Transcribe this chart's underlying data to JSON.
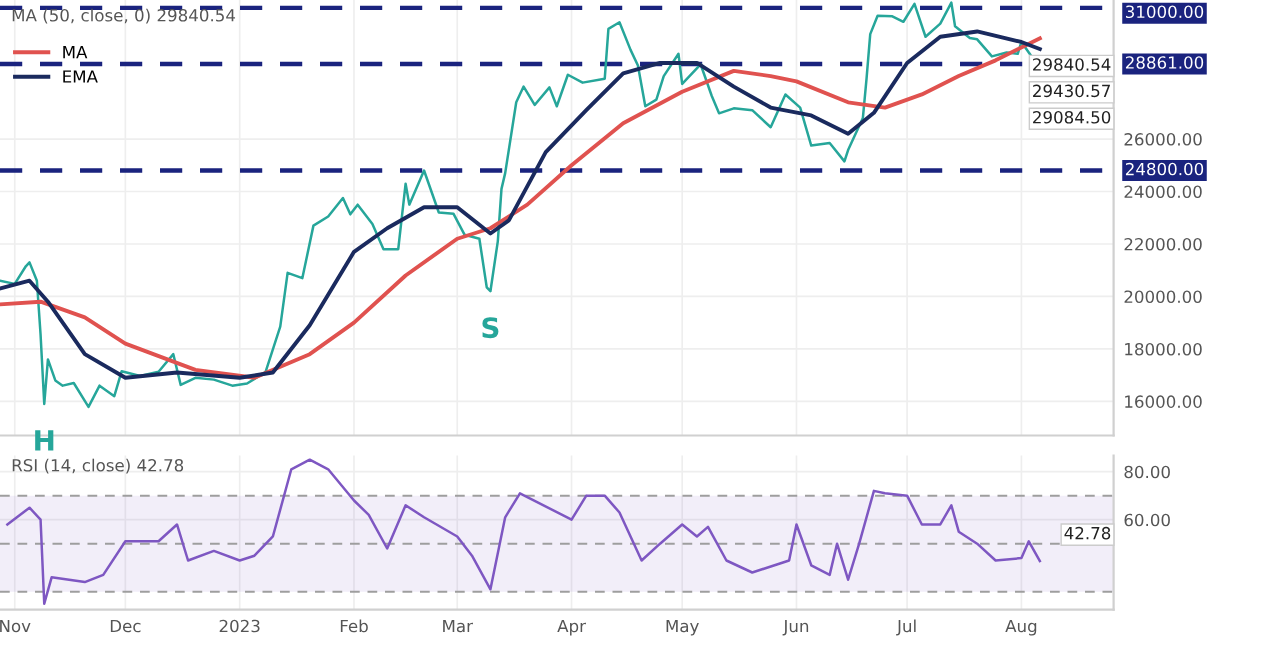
{
  "chart_data": [
    {
      "type": "line",
      "title": "MA (50, close, 0) 29840.54",
      "tick_labels": "y",
      "grid": true,
      "legend": "top left",
      "line_style": "solid",
      "marker": "none",
      "xlim": [
        "2022-10-28",
        "2023-08-26"
      ],
      "ylim": [
        14700,
        31300
      ],
      "yticks": [
        {
          "value": 16000,
          "label": "16000.00"
        },
        {
          "value": 18000,
          "label": "18000.00"
        },
        {
          "value": 20000,
          "label": "20000.00"
        },
        {
          "value": 22000,
          "label": "22000.00"
        },
        {
          "value": 24000,
          "label": "24000.00"
        },
        {
          "value": 26000,
          "label": "26000.00"
        }
      ],
      "series": [
        {
          "color": "#26a69a",
          "x": [
            "2022-10-28",
            "2022-11-01",
            "2022-11-04",
            "2022-11-05",
            "2022-11-07",
            "2022-11-08",
            "2022-11-09",
            "2022-11-10",
            "2022-11-12",
            "2022-11-14",
            "2022-11-17",
            "2022-11-21",
            "2022-11-24",
            "2022-11-28",
            "2022-11-30",
            "2022-12-05",
            "2022-12-10",
            "2022-12-14",
            "2022-12-16",
            "2022-12-20",
            "2022-12-25",
            "2022-12-30",
            "2023-01-03",
            "2023-01-08",
            "2023-01-12",
            "2023-01-14",
            "2023-01-18",
            "2023-01-21",
            "2023-01-25",
            "2023-01-29",
            "2023-01-31",
            "2023-02-02",
            "2023-02-06",
            "2023-02-09",
            "2023-02-13",
            "2023-02-15",
            "2023-02-16",
            "2023-02-20",
            "2023-02-24",
            "2023-02-28",
            "2023-03-03",
            "2023-03-07",
            "2023-03-09",
            "2023-03-10",
            "2023-03-12",
            "2023-03-13",
            "2023-03-14",
            "2023-03-17",
            "2023-03-19",
            "2023-03-22",
            "2023-03-26",
            "2023-03-28",
            "2023-03-31",
            "2023-04-04",
            "2023-04-10",
            "2023-04-11",
            "2023-04-14",
            "2023-04-17",
            "2023-04-19",
            "2023-04-21",
            "2023-04-24",
            "2023-04-26",
            "2023-04-30",
            "2023-05-01",
            "2023-05-06",
            "2023-05-09",
            "2023-05-11",
            "2023-05-15",
            "2023-05-20",
            "2023-05-25",
            "2023-05-29",
            "2023-06-02",
            "2023-06-05",
            "2023-06-10",
            "2023-06-14",
            "2023-06-15",
            "2023-06-19",
            "2023-06-20",
            "2023-06-21",
            "2023-06-23",
            "2023-06-27",
            "2023-06-30",
            "2023-07-03",
            "2023-07-06",
            "2023-07-10",
            "2023-07-13",
            "2023-07-14",
            "2023-07-18",
            "2023-07-20",
            "2023-07-24",
            "2023-07-28",
            "2023-07-31",
            "2023-08-01",
            "2023-08-04",
            "2023-08-06"
          ],
          "values": [
            20600,
            20480,
            21150,
            21300,
            20600,
            18550,
            15900,
            17600,
            16800,
            16600,
            16700,
            15790,
            16600,
            16200,
            17150,
            16970,
            17130,
            17800,
            16630,
            16900,
            16830,
            16600,
            16680,
            17120,
            18850,
            20900,
            20700,
            22700,
            23050,
            23750,
            23130,
            23500,
            22760,
            21800,
            21800,
            24300,
            23500,
            24800,
            23200,
            23150,
            22350,
            22200,
            20350,
            20200,
            22100,
            24100,
            24700,
            27400,
            28000,
            27300,
            27970,
            27250,
            28450,
            28150,
            28300,
            30200,
            30450,
            29400,
            28800,
            27250,
            27500,
            28400,
            29250,
            28100,
            28850,
            27650,
            26980,
            27170,
            27100,
            26450,
            27700,
            27200,
            25750,
            25850,
            25150,
            25580,
            26800,
            28300,
            30000,
            30700,
            30680,
            30470,
            31150,
            29900,
            30400,
            31200,
            30300,
            29850,
            29800,
            29150,
            29300,
            29250,
            29700,
            29100,
            29084.5
          ]
        },
        {
          "name": "MA",
          "color": "#e0524f",
          "x": [
            "2022-10-28",
            "2022-11-08",
            "2022-11-20",
            "2022-12-01",
            "2022-12-20",
            "2023-01-05",
            "2023-01-20",
            "2023-02-01",
            "2023-02-15",
            "2023-03-01",
            "2023-03-10",
            "2023-03-20",
            "2023-04-01",
            "2023-04-15",
            "2023-05-01",
            "2023-05-15",
            "2023-05-25",
            "2023-06-01",
            "2023-06-15",
            "2023-06-25",
            "2023-07-05",
            "2023-07-15",
            "2023-07-25",
            "2023-08-06"
          ],
          "values": [
            19700,
            19800,
            19200,
            18200,
            17200,
            16900,
            17800,
            19000,
            20800,
            22200,
            22600,
            23500,
            25000,
            26600,
            27800,
            28600,
            28400,
            28200,
            27400,
            27200,
            27700,
            28400,
            29000,
            29840.54
          ]
        },
        {
          "name": "EMA",
          "color": "#1a2a5e",
          "x": [
            "2022-10-28",
            "2022-11-05",
            "2022-11-10",
            "2022-11-20",
            "2022-12-01",
            "2022-12-15",
            "2023-01-01",
            "2023-01-10",
            "2023-01-20",
            "2023-02-01",
            "2023-02-10",
            "2023-02-20",
            "2023-03-01",
            "2023-03-10",
            "2023-03-15",
            "2023-03-25",
            "2023-04-05",
            "2023-04-15",
            "2023-04-25",
            "2023-05-05",
            "2023-05-15",
            "2023-05-25",
            "2023-06-05",
            "2023-06-15",
            "2023-06-22",
            "2023-07-01",
            "2023-07-10",
            "2023-07-20",
            "2023-08-01",
            "2023-08-06"
          ],
          "values": [
            20300,
            20600,
            19800,
            17800,
            16900,
            17100,
            16900,
            17100,
            18900,
            21700,
            22600,
            23400,
            23400,
            22400,
            22900,
            25500,
            27100,
            28500,
            28900,
            28900,
            28000,
            27200,
            26900,
            26200,
            27000,
            28900,
            29900,
            30100,
            29700,
            29430.57
          ]
        }
      ],
      "ref_lines": [
        {
          "axis": "y",
          "value": 31000,
          "label": "31000.00",
          "color": "#1a237e",
          "line_style": "dashed"
        },
        {
          "axis": "y",
          "value": 24800,
          "label": "24800.00",
          "color": "#1a237e",
          "line_style": "dashed"
        },
        {
          "axis": "y",
          "value": 28861,
          "label": "28861.00",
          "color": "#1a237e",
          "line_style": "dashed"
        }
      ],
      "annotations": [
        "29840.54",
        "29430.57",
        "29084.50",
        {
          "text": "H",
          "x": "2022-11-09",
          "y": 15900
        },
        {
          "text": "S",
          "x": "2023-03-10",
          "y": 20200
        }
      ]
    },
    {
      "type": "line",
      "title": "RSI (14, close) 42.78",
      "grid": true,
      "line_style": "solid",
      "marker": "none",
      "xlim": [
        "2022-10-28",
        "2023-08-26"
      ],
      "ylim": [
        22.5,
        86.7
      ],
      "xticks": [
        {
          "value": "2022-11-01",
          "label": "Nov"
        },
        {
          "value": "2022-12-01",
          "label": "Dec"
        },
        {
          "value": "2023-01-01",
          "label": "2023"
        },
        {
          "value": "2023-02-01",
          "label": "Feb"
        },
        {
          "value": "2023-03-01",
          "label": "Mar"
        },
        {
          "value": "2023-04-01",
          "label": "Apr"
        },
        {
          "value": "2023-05-01",
          "label": "May"
        },
        {
          "value": "2023-06-01",
          "label": "Jun"
        },
        {
          "value": "2023-07-01",
          "label": "Jul"
        },
        {
          "value": "2023-08-01",
          "label": "Aug"
        }
      ],
      "yticks": [
        {
          "value": 60,
          "label": "60.00"
        },
        {
          "value": 80,
          "label": "80.00"
        }
      ],
      "series": [
        {
          "color": "#7e57c2",
          "x": [
            "2022-10-30",
            "2022-11-05",
            "2022-11-08",
            "2022-11-09",
            "2022-11-11",
            "2022-11-20",
            "2022-11-25",
            "2022-12-01",
            "2022-12-10",
            "2022-12-15",
            "2022-12-18",
            "2022-12-25",
            "2023-01-01",
            "2023-01-05",
            "2023-01-10",
            "2023-01-15",
            "2023-01-20",
            "2023-01-25",
            "2023-02-01",
            "2023-02-05",
            "2023-02-10",
            "2023-02-15",
            "2023-02-20",
            "2023-03-01",
            "2023-03-05",
            "2023-03-10",
            "2023-03-14",
            "2023-03-18",
            "2023-04-01",
            "2023-04-05",
            "2023-04-10",
            "2023-04-14",
            "2023-04-20",
            "2023-04-25",
            "2023-05-01",
            "2023-05-05",
            "2023-05-08",
            "2023-05-13",
            "2023-05-20",
            "2023-05-30",
            "2023-06-01",
            "2023-06-05",
            "2023-06-10",
            "2023-06-12",
            "2023-06-15",
            "2023-06-18",
            "2023-06-22",
            "2023-06-25",
            "2023-07-01",
            "2023-07-05",
            "2023-07-10",
            "2023-07-13",
            "2023-07-15",
            "2023-07-20",
            "2023-07-25",
            "2023-08-01",
            "2023-08-03",
            "2023-08-06"
          ],
          "values": [
            58,
            65,
            60,
            25,
            36,
            34,
            37,
            51,
            51,
            58,
            43,
            47,
            43,
            45,
            53,
            81,
            85,
            81,
            68,
            62,
            48,
            66,
            61,
            53,
            45,
            31,
            61,
            71,
            60,
            70,
            70,
            63,
            43,
            50,
            58,
            53,
            57,
            43,
            38,
            43,
            58,
            41,
            37,
            50,
            35,
            50,
            72,
            71,
            70,
            58,
            58,
            66,
            55,
            50,
            43,
            44,
            51,
            42.78
          ]
        }
      ],
      "bands": [
        {
          "axis": "y",
          "from": 30,
          "to": 70,
          "color": "#7e57c2"
        }
      ],
      "ref_lines": [
        {
          "axis": "y",
          "value": 70,
          "color": "#9e9e9e",
          "line_style": "dashed"
        },
        {
          "axis": "y",
          "value": 50,
          "color": "#9e9e9e",
          "line_style": "dashed"
        },
        {
          "axis": "y",
          "value": 30,
          "color": "#9e9e9e",
          "line_style": "dashed"
        }
      ],
      "annotations": [
        "42.78"
      ]
    }
  ]
}
